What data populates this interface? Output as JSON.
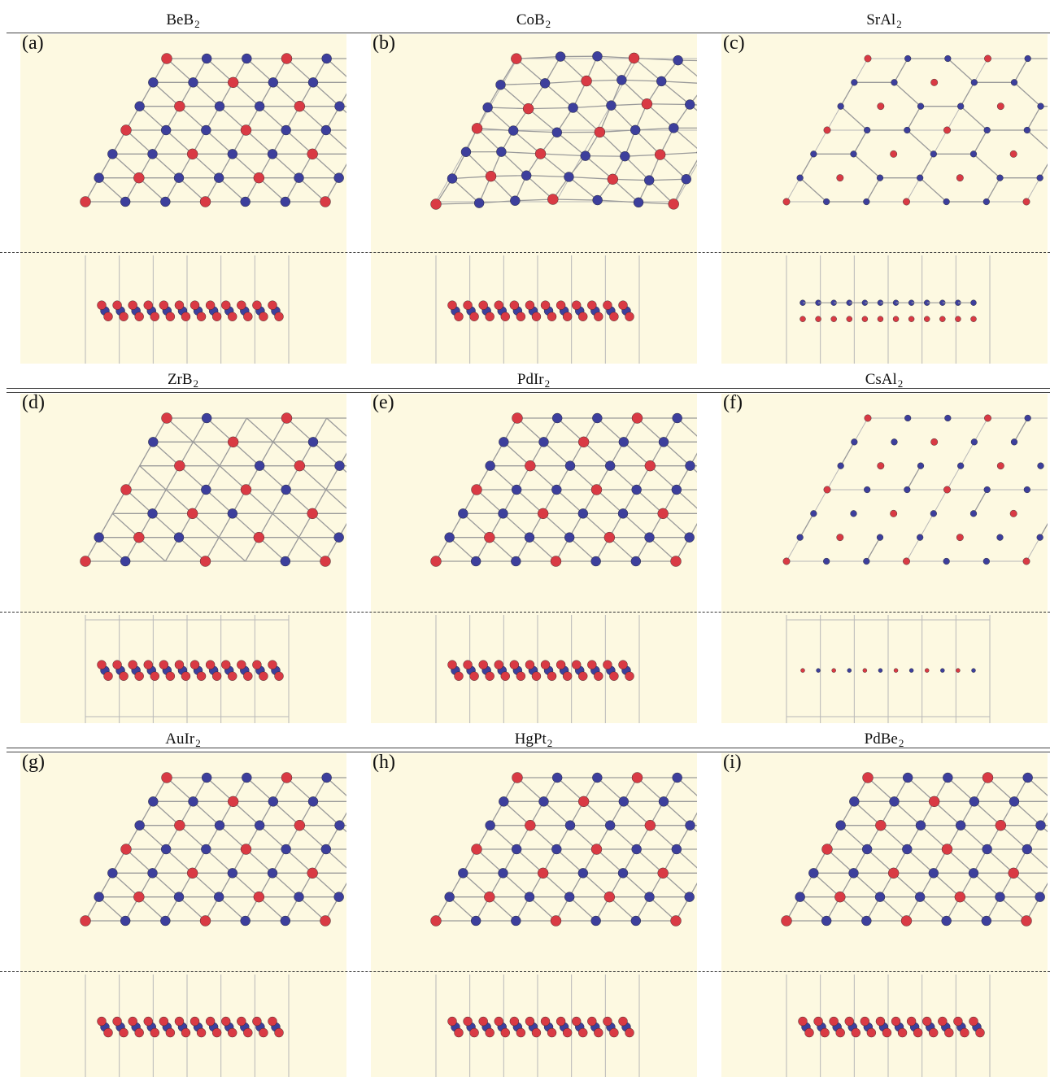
{
  "rows": [
    {
      "cells": [
        {
          "label": "(a)",
          "formula": "BeB",
          "subscript": "2",
          "style": "dense"
        },
        {
          "label": "(b)",
          "formula": "CoB",
          "subscript": "2",
          "style": "distorted"
        },
        {
          "label": "(c)",
          "formula": "SrAl",
          "subscript": "2",
          "style": "honeycomb"
        }
      ]
    },
    {
      "cells": [
        {
          "label": "(d)",
          "formula": "ZrB",
          "subscript": "2",
          "style": "sparse"
        },
        {
          "label": "(e)",
          "formula": "PdIr",
          "subscript": "2",
          "style": "dense"
        },
        {
          "label": "(f)",
          "formula": "CsAl",
          "subscript": "2",
          "style": "chains"
        }
      ]
    },
    {
      "cells": [
        {
          "label": "(g)",
          "formula": "AuIr",
          "subscript": "2",
          "style": "dense"
        },
        {
          "label": "(h)",
          "formula": "HgPt",
          "subscript": "2",
          "style": "dense"
        },
        {
          "label": "(i)",
          "formula": "PdBe",
          "subscript": "2",
          "style": "dense"
        }
      ]
    }
  ],
  "colors": {
    "panel_background": "#fdf9e1",
    "atom_red": "#d93a44",
    "atom_blue": "#3d3f9c",
    "bond": "#9a9a9a",
    "cell_line": "#b8b8b8"
  }
}
